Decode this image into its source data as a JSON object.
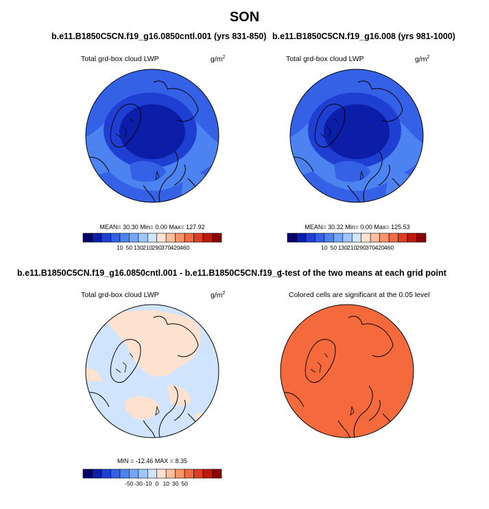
{
  "main_title": "SON",
  "panels": [
    {
      "title": "b.e11.B1850C5CN.f19_g16.0850cntl.001 (yrs 831-850)",
      "variable": "Total grd-box cloud LWP",
      "units": "g/m",
      "units_sup": "2",
      "stats": "MEAN=  30.30  Min=   0.00  Max= 127.92"
    },
    {
      "title": "b.e11.B1850C5CN.f19_g16.008 (yrs 981-1000)",
      "variable": "Total grd-box cloud LWP",
      "units": "g/m",
      "units_sup": "2",
      "stats": "MEAN=  30.32  Min=   0.00  Max= 125.53"
    },
    {
      "title": "b.e11.B1850C5CN.f19_g16.0850cntl.001 - b.e11.B1850C5CN.f19_g16.008",
      "variable": "Total grd-box cloud LWP",
      "units": "g/m",
      "units_sup": "2",
      "stats": "MIN = -12.46 MAX =   8.35"
    },
    {
      "title": "t-test of the two means at each grid point",
      "variable": "Colored cells are significant at the 0.05 level",
      "units": "",
      "units_sup": "",
      "stats": ""
    }
  ],
  "chart_data": [
    {
      "type": "heatmap",
      "projection": "north polar stereographic",
      "colorbar": {
        "colors": [
          "#08006e",
          "#0c1ea8",
          "#1e3fd2",
          "#3461e6",
          "#4c83f0",
          "#73a6f7",
          "#a0c6fb",
          "#d0e4fd",
          "#fde2cf",
          "#fbbe9f",
          "#f7946b",
          "#f06a44",
          "#df3d22",
          "#be1a10",
          "#8a0404"
        ],
        "tick_labels": [
          "10",
          "50",
          "130",
          "210",
          "290",
          "370",
          "420",
          "460"
        ]
      }
    },
    {
      "type": "heatmap",
      "projection": "north polar stereographic",
      "colorbar": {
        "colors": [
          "#08006e",
          "#0c1ea8",
          "#1e3fd2",
          "#3461e6",
          "#4c83f0",
          "#73a6f7",
          "#a0c6fb",
          "#d0e4fd",
          "#fde2cf",
          "#fbbe9f",
          "#f7946b",
          "#f06a44",
          "#df3d22",
          "#be1a10",
          "#8a0404"
        ],
        "tick_labels": [
          "10",
          "50",
          "130",
          "210",
          "290",
          "370",
          "420",
          "460"
        ]
      }
    },
    {
      "type": "heatmap",
      "projection": "north polar stereographic",
      "colorbar": {
        "colors": [
          "#08006e",
          "#0c1ea8",
          "#1e3fd2",
          "#3461e6",
          "#4c83f0",
          "#73a6f7",
          "#a0c6fb",
          "#d0e4fd",
          "#fde2cf",
          "#fbbe9f",
          "#f7946b",
          "#f06a44",
          "#df3d22",
          "#be1a10",
          "#8a0404"
        ],
        "tick_labels": [
          "-50",
          "-30",
          "-10",
          "0",
          "10",
          "30",
          "50"
        ]
      }
    },
    {
      "type": "heatmap",
      "projection": "north polar stereographic",
      "significance_color": "#f46a3c"
    }
  ]
}
